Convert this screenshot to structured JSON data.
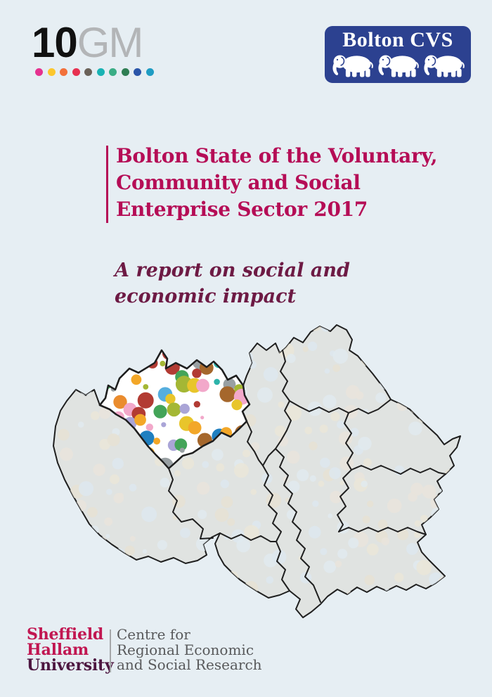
{
  "page": {
    "bg": "#e6eef3"
  },
  "header": {
    "tengm": {
      "black": "10",
      "gray": "GM",
      "dots": [
        "#e5318f",
        "#fcc72d",
        "#f2703a",
        "#e73150",
        "#6a6158",
        "#19b3b4",
        "#3aad85",
        "#2f7e53",
        "#2b55a9",
        "#1f9cc3"
      ]
    },
    "bolton_cvs": {
      "label": "Bolton CVS",
      "bg": "#2c4190"
    }
  },
  "title": {
    "color": "#b50d56",
    "line1": "Bolton State of the Voluntary,",
    "line2": "Community and Social",
    "line3": "Enterprise Sector 2017"
  },
  "subtitle": {
    "color": "#6d1a44",
    "line1": "A report on social and",
    "line2": "economic impact"
  },
  "map": {
    "region": "Greater Manchester boroughs",
    "highlighted": "Bolton",
    "fill": "#e0e3e1",
    "outline": "#1f1f1f",
    "highlight_fill": "#ffffff",
    "bolton_dot_palette": [
      "#1f7fc0",
      "#56aede",
      "#f3a728",
      "#e8c52b",
      "#a5672c",
      "#b23b33",
      "#a4b735",
      "#2cb3aa",
      "#43a458",
      "#f2a8ca",
      "#aaa5d7",
      "#99a0a3",
      "#ea8c2e"
    ],
    "faint_dot_palette": [
      "#eae6d8",
      "#dde8ee",
      "#e6e2d4",
      "#e0eaee",
      "#e9e4dc"
    ]
  },
  "footer": {
    "shu": {
      "line1": "Sheffield",
      "line2": "Hallam",
      "line3": "University",
      "color_main": "#c11651",
      "color_last": "#4d1640"
    },
    "cresr": {
      "color": "#58595b",
      "line1": "Centre for",
      "line2": "Regional Economic",
      "line3": "and Social Research"
    }
  }
}
